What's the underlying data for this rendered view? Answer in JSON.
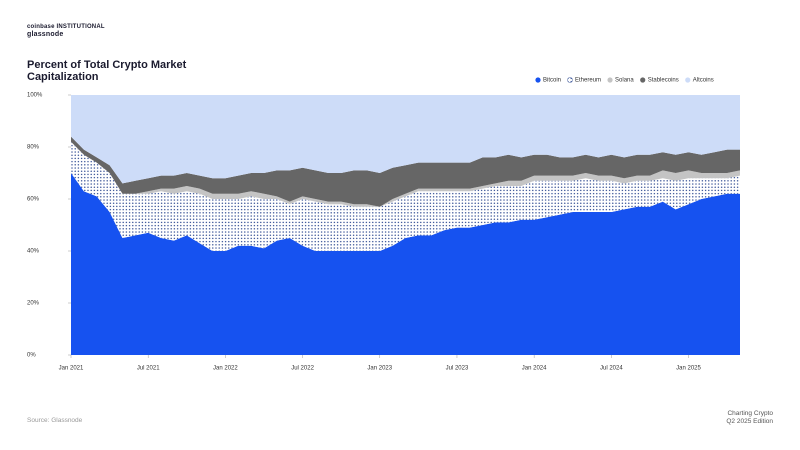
{
  "header": {
    "brand": "coinbase INSTITUTIONAL",
    "partner": "glassnode"
  },
  "chart_data": {
    "type": "stacked-area",
    "title": "Percent of Total Crypto Market Capitalization",
    "x": [
      "2021-01",
      "2021-02",
      "2021-03",
      "2021-04",
      "2021-05",
      "2021-06",
      "2021-07",
      "2021-08",
      "2021-09",
      "2021-10",
      "2021-11",
      "2021-12",
      "2022-01",
      "2022-02",
      "2022-03",
      "2022-04",
      "2022-05",
      "2022-06",
      "2022-07",
      "2022-08",
      "2022-09",
      "2022-10",
      "2022-11",
      "2022-12",
      "2023-01",
      "2023-02",
      "2023-03",
      "2023-04",
      "2023-05",
      "2023-06",
      "2023-07",
      "2023-08",
      "2023-09",
      "2023-10",
      "2023-11",
      "2023-12",
      "2024-01",
      "2024-02",
      "2024-03",
      "2024-04",
      "2024-05",
      "2024-06",
      "2024-07",
      "2024-08",
      "2024-09",
      "2024-10",
      "2024-11",
      "2024-12",
      "2025-01",
      "2025-02",
      "2025-03",
      "2025-04",
      "2025-05"
    ],
    "xlim": [
      "2021-01",
      "2025-05"
    ],
    "xticks": [
      {
        "value": "2021-01",
        "label": "Jan 2021"
      },
      {
        "value": "2021-07",
        "label": "Jul 2021"
      },
      {
        "value": "2022-01",
        "label": "Jan 2022"
      },
      {
        "value": "2022-07",
        "label": "Jul 2022"
      },
      {
        "value": "2023-01",
        "label": "Jan 2023"
      },
      {
        "value": "2023-07",
        "label": "Jul 2023"
      },
      {
        "value": "2024-01",
        "label": "Jan 2024"
      },
      {
        "value": "2024-07",
        "label": "Jul 2024"
      },
      {
        "value": "2025-01",
        "label": "Jan 2025"
      }
    ],
    "ylim": [
      0,
      100
    ],
    "yticks": [
      {
        "value": 0,
        "label": "0%"
      },
      {
        "value": 20,
        "label": "20%"
      },
      {
        "value": 40,
        "label": "40%"
      },
      {
        "value": 60,
        "label": "60%"
      },
      {
        "value": 80,
        "label": "80%"
      },
      {
        "value": 100,
        "label": "100%"
      }
    ],
    "series": [
      {
        "name": "Bitcoin",
        "color": "#1652f0",
        "values": [
          70,
          63,
          61,
          55,
          45,
          46,
          47,
          45,
          44,
          46,
          43,
          40,
          40,
          42,
          42,
          41,
          44,
          45,
          42,
          40,
          40,
          40,
          40,
          40,
          40,
          42,
          45,
          46,
          46,
          48,
          49,
          49,
          50,
          51,
          51,
          52,
          52,
          53,
          54,
          55,
          55,
          55,
          55,
          56,
          57,
          57,
          59,
          56,
          58,
          60,
          61,
          62,
          62
        ]
      },
      {
        "name": "Ethereum",
        "color": "#ffffff",
        "pattern": "dots",
        "values": [
          12,
          14,
          13,
          15,
          17,
          16,
          15,
          18,
          18,
          17,
          19,
          20,
          20,
          18,
          19,
          19,
          16,
          13,
          18,
          19,
          18,
          18,
          17,
          17,
          17,
          17,
          16,
          17,
          17,
          15,
          14,
          14,
          14,
          14,
          14,
          13,
          15,
          14,
          13,
          12,
          13,
          12,
          12,
          10,
          10,
          10,
          9,
          11,
          10,
          8,
          7,
          6,
          7
        ]
      },
      {
        "name": "Solana",
        "color": "#c4c4c4",
        "values": [
          0,
          0,
          0,
          0,
          0,
          0,
          1,
          1,
          2,
          2,
          2,
          2,
          2,
          2,
          2,
          2,
          1,
          1,
          1,
          1,
          1,
          1,
          1,
          1,
          0,
          1,
          1,
          1,
          1,
          1,
          1,
          1,
          1,
          1,
          2,
          2,
          2,
          2,
          2,
          2,
          2,
          2,
          2,
          2,
          2,
          2,
          3,
          3,
          3,
          2,
          2,
          2,
          2
        ]
      },
      {
        "name": "Stablecoins",
        "color": "#666666",
        "values": [
          2,
          2,
          2,
          3,
          4,
          5,
          5,
          5,
          5,
          5,
          5,
          6,
          6,
          7,
          7,
          8,
          10,
          12,
          11,
          11,
          11,
          11,
          13,
          13,
          13,
          12,
          11,
          10,
          10,
          10,
          10,
          10,
          11,
          10,
          10,
          9,
          8,
          8,
          7,
          7,
          7,
          7,
          8,
          8,
          8,
          8,
          7,
          7,
          7,
          7,
          8,
          9,
          8
        ]
      },
      {
        "name": "Altcoins",
        "color": "#cddcf8",
        "values": [
          16,
          21,
          24,
          27,
          34,
          33,
          32,
          31,
          31,
          30,
          31,
          32,
          32,
          31,
          30,
          30,
          29,
          29,
          28,
          29,
          30,
          30,
          29,
          29,
          30,
          28,
          27,
          26,
          26,
          26,
          26,
          26,
          24,
          24,
          23,
          24,
          23,
          23,
          24,
          24,
          23,
          24,
          23,
          24,
          23,
          23,
          22,
          23,
          22,
          23,
          22,
          21,
          21
        ]
      }
    ],
    "source": "Source: Glassnode"
  },
  "footer": {
    "publication": "Charting Crypto",
    "edition": "Q2 2025 Edition"
  }
}
